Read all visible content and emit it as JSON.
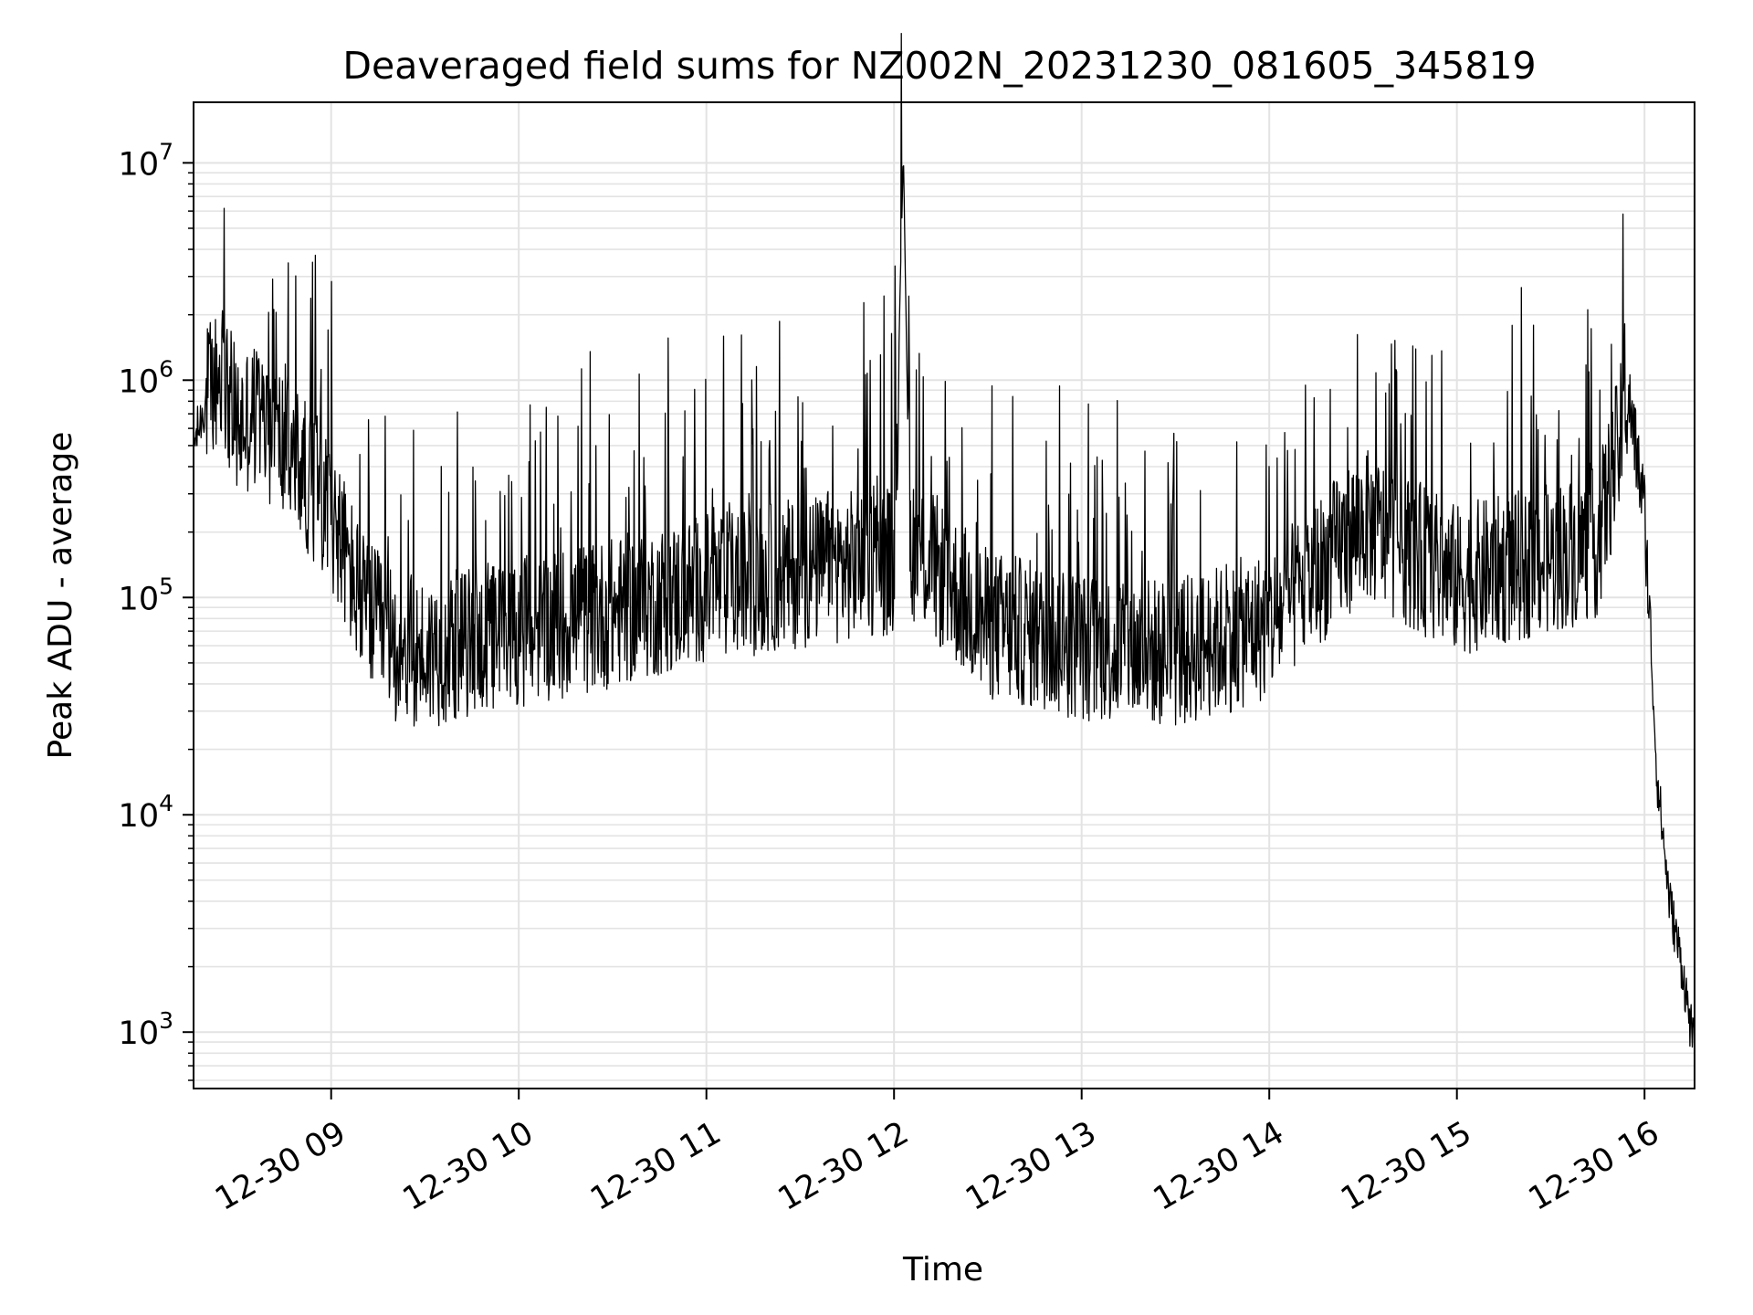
{
  "chart_data": {
    "type": "line",
    "title": "Deaveraged field sums for NZ002N_20231230_081605_345819",
    "xlabel": "Time",
    "ylabel": "Peak ADU - average",
    "yscale": "log",
    "ylim": [
      550,
      19000000
    ],
    "xlim": [
      "12-30 08:16",
      "12-30 16:16"
    ],
    "x_ticks": [
      "12-30 09",
      "12-30 10",
      "12-30 11",
      "12-30 12",
      "12-30 13",
      "12-30 14",
      "12-30 15",
      "12-30 16"
    ],
    "y_ticks": [
      {
        "base": "10",
        "exp": "3",
        "value": 1000
      },
      {
        "base": "10",
        "exp": "4",
        "value": 10000
      },
      {
        "base": "10",
        "exp": "5",
        "value": 100000
      },
      {
        "base": "10",
        "exp": "6",
        "value": 1000000
      },
      {
        "base": "10",
        "exp": "7",
        "value": 10000000
      }
    ],
    "grid": true,
    "line_color": "#000000",
    "series": [
      {
        "x": [
          "12-30 08:16",
          "12-30 08:20",
          "12-30 08:25",
          "12-30 08:30",
          "12-30 08:35",
          "12-30 08:40",
          "12-30 08:45",
          "12-30 08:50",
          "12-30 09:00",
          "12-30 09:10",
          "12-30 09:20",
          "12-30 09:30",
          "12-30 09:40",
          "12-30 10:00",
          "12-30 10:30",
          "12-30 11:00",
          "12-30 11:30",
          "12-30 12:00",
          "12-30 12:03",
          "12-30 12:05",
          "12-30 12:30",
          "12-30 13:00",
          "12-30 13:30",
          "12-30 14:00",
          "12-30 14:30",
          "12-30 15:00",
          "12-30 15:30",
          "12-30 15:45",
          "12-30 15:55",
          "12-30 16:00",
          "12-30 16:04",
          "12-30 16:08",
          "12-30 16:12",
          "12-30 16:16"
        ],
        "values": [
          500000,
          800000,
          1100000,
          600000,
          700000,
          600000,
          500000,
          400000,
          250000,
          90000,
          60000,
          55000,
          60000,
          70000,
          85000,
          110000,
          130000,
          150000,
          11500000,
          180000,
          75000,
          60000,
          55000,
          75000,
          220000,
          120000,
          150000,
          180000,
          800000,
          250000,
          15000,
          4000,
          2000,
          800
        ]
      }
    ]
  }
}
